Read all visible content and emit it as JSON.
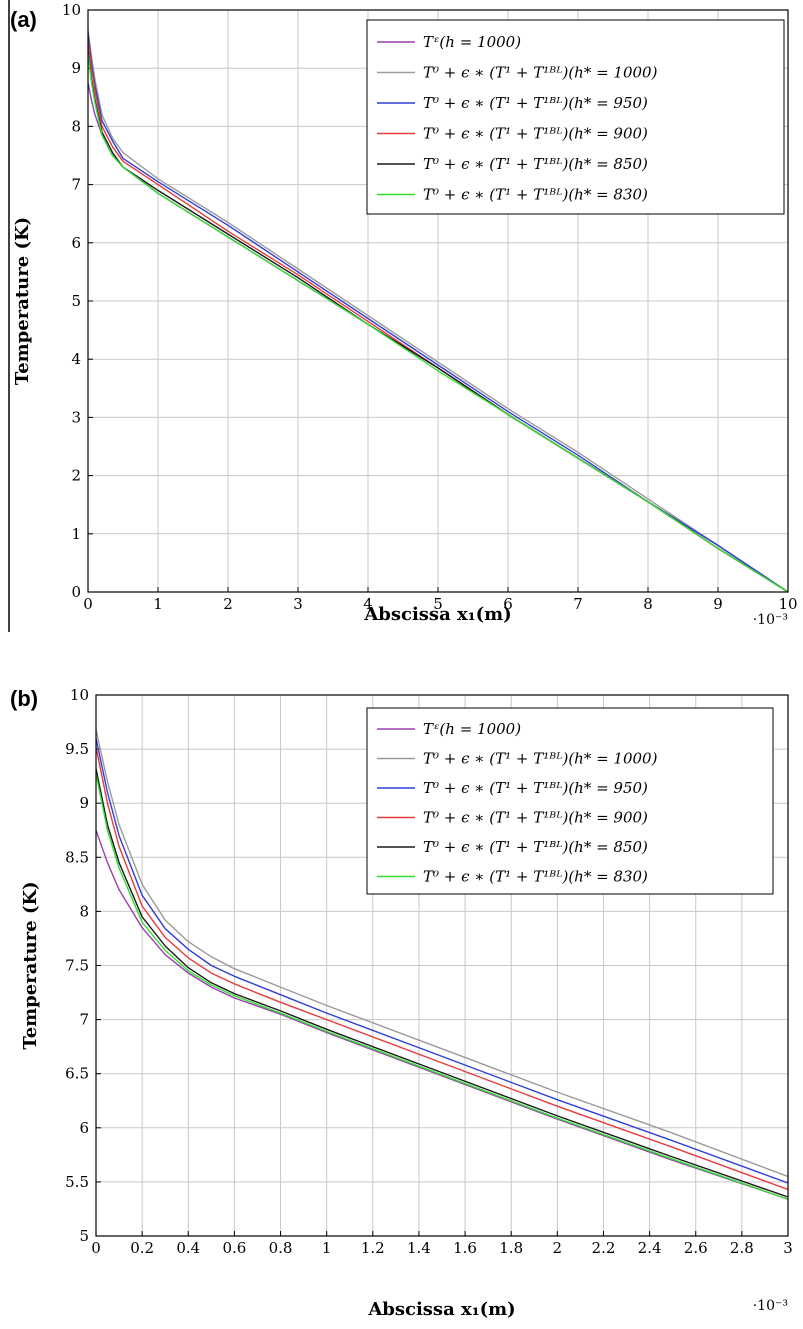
{
  "chart_data": [
    {
      "panel_label": "(a)",
      "type": "line",
      "xlabel": "Abscissa x₁(m)",
      "ylabel": "Temperature (K)",
      "x_multiplier": "·10⁻³",
      "xlim": [
        0,
        10
      ],
      "ylim": [
        0,
        10
      ],
      "xticks": [
        "0",
        "1",
        "2",
        "3",
        "4",
        "5",
        "6",
        "7",
        "8",
        "9",
        "10"
      ],
      "yticks": [
        "0",
        "1",
        "2",
        "3",
        "4",
        "5",
        "6",
        "7",
        "8",
        "9",
        "10"
      ],
      "grid": true,
      "legend_position": "top-right",
      "series": [
        {
          "name": "Tᵋ(h = 1000)",
          "color": "#9b3fb0",
          "x": [
            0,
            0.05,
            0.1,
            0.2,
            0.35,
            0.5,
            1,
            2,
            3,
            4,
            5,
            6,
            7,
            8,
            9,
            10
          ],
          "y": [
            8.75,
            8.45,
            8.2,
            7.85,
            7.5,
            7.3,
            6.85,
            6.1,
            5.35,
            4.6,
            3.85,
            3.05,
            2.3,
            1.55,
            0.8,
            0
          ]
        },
        {
          "name": "T⁰ + ϵ ∗ (T¹ + T¹ᴮᴸ)(h* = 1000)",
          "color": "#9a9a9a",
          "x": [
            0,
            0.05,
            0.1,
            0.2,
            0.35,
            0.5,
            1,
            2,
            3,
            4,
            5,
            6,
            7,
            8,
            9,
            10
          ],
          "y": [
            9.65,
            9.2,
            8.8,
            8.2,
            7.8,
            7.55,
            7.1,
            6.35,
            5.55,
            4.75,
            3.95,
            3.15,
            2.4,
            1.6,
            0.8,
            0
          ]
        },
        {
          "name": "T⁰ + ϵ ∗ (T¹ + T¹ᴮᴸ)(h* = 950)",
          "color": "#2f3fd6",
          "x": [
            0,
            0.05,
            0.1,
            0.2,
            0.35,
            0.5,
            1,
            2,
            3,
            4,
            5,
            6,
            7,
            8,
            9,
            10
          ],
          "y": [
            9.6,
            9.1,
            8.7,
            8.1,
            7.75,
            7.45,
            7.05,
            6.3,
            5.5,
            4.7,
            3.9,
            3.1,
            2.35,
            1.55,
            0.8,
            0
          ]
        },
        {
          "name": "T⁰ + ϵ ∗ (T¹ + T¹ᴮᴸ)(h* = 900)",
          "color": "#e83a3a",
          "x": [
            0,
            0.05,
            0.1,
            0.2,
            0.35,
            0.5,
            1,
            2,
            3,
            4,
            5,
            6,
            7,
            8,
            9,
            10
          ],
          "y": [
            9.5,
            9.0,
            8.6,
            8.0,
            7.65,
            7.4,
            7.0,
            6.2,
            5.45,
            4.65,
            3.85,
            3.05,
            2.3,
            1.55,
            0.75,
            0
          ]
        },
        {
          "name": "T⁰ + ϵ ∗ (T¹ + T¹ᴮᴸ)(h* = 850)",
          "color": "#1a1a1a",
          "x": [
            0,
            0.05,
            0.1,
            0.2,
            0.35,
            0.5,
            1,
            2,
            3,
            4,
            5,
            6,
            7,
            8,
            9,
            10
          ],
          "y": [
            9.3,
            8.8,
            8.45,
            7.9,
            7.55,
            7.3,
            6.9,
            6.15,
            5.4,
            4.6,
            3.85,
            3.05,
            2.3,
            1.55,
            0.75,
            0
          ]
        },
        {
          "name": "T⁰ + ϵ ∗ (T¹ + T¹ᴮᴸ)(h* = 830)",
          "color": "#33dd33",
          "x": [
            0,
            0.05,
            0.1,
            0.2,
            0.35,
            0.5,
            1,
            2,
            3,
            4,
            5,
            6,
            7,
            8,
            9,
            10
          ],
          "y": [
            9.25,
            8.75,
            8.4,
            7.85,
            7.5,
            7.3,
            6.85,
            6.1,
            5.35,
            4.6,
            3.8,
            3.05,
            2.3,
            1.55,
            0.75,
            0
          ]
        }
      ]
    },
    {
      "panel_label": "(b)",
      "type": "line",
      "xlabel": "Abscissa x₁(m)",
      "ylabel": "Temperature (K)",
      "x_multiplier": "·10⁻³",
      "xlim": [
        0,
        3
      ],
      "ylim": [
        5,
        10
      ],
      "xticks": [
        "0",
        "0.2",
        "0.4",
        "0.6",
        "0.8",
        "1",
        "1.2",
        "1.4",
        "1.6",
        "1.8",
        "2",
        "2.2",
        "2.4",
        "2.6",
        "2.8",
        "3"
      ],
      "yticks": [
        "5",
        "5.5",
        "6",
        "6.5",
        "7",
        "7.5",
        "8",
        "8.5",
        "9",
        "9.5",
        "10"
      ],
      "grid": true,
      "legend_position": "top-right",
      "series": [
        {
          "name": "Tᵋ(h = 1000)",
          "color": "#9b3fb0",
          "x": [
            0,
            0.05,
            0.1,
            0.2,
            0.3,
            0.4,
            0.5,
            0.6,
            0.8,
            1,
            1.5,
            2,
            2.5,
            3
          ],
          "y": [
            8.75,
            8.45,
            8.2,
            7.85,
            7.6,
            7.43,
            7.3,
            7.2,
            7.05,
            6.88,
            6.48,
            6.08,
            5.7,
            5.34
          ]
        },
        {
          "name": "T⁰ + ϵ ∗ (T¹ + T¹ᴮᴸ)(h* = 1000)",
          "color": "#9a9a9a",
          "x": [
            0,
            0.05,
            0.1,
            0.2,
            0.3,
            0.4,
            0.5,
            0.6,
            0.8,
            1,
            1.5,
            2,
            2.5,
            3
          ],
          "y": [
            9.68,
            9.2,
            8.8,
            8.25,
            7.92,
            7.72,
            7.58,
            7.47,
            7.3,
            7.13,
            6.73,
            6.33,
            5.95,
            5.55
          ]
        },
        {
          "name": "T⁰ + ϵ ∗ (T¹ + T¹ᴮᴸ)(h* = 950)",
          "color": "#2f3fd6",
          "x": [
            0,
            0.05,
            0.1,
            0.2,
            0.3,
            0.4,
            0.5,
            0.6,
            0.8,
            1,
            1.5,
            2,
            2.5,
            3
          ],
          "y": [
            9.6,
            9.1,
            8.7,
            8.15,
            7.84,
            7.65,
            7.5,
            7.4,
            7.23,
            7.06,
            6.66,
            6.26,
            5.88,
            5.49
          ]
        },
        {
          "name": "T⁰ + ϵ ∗ (T¹ + T¹ᴮᴸ)(h* = 900)",
          "color": "#e83a3a",
          "x": [
            0,
            0.05,
            0.1,
            0.2,
            0.3,
            0.4,
            0.5,
            0.6,
            0.8,
            1,
            1.5,
            2,
            2.5,
            3
          ],
          "y": [
            9.52,
            9.0,
            8.6,
            8.05,
            7.76,
            7.57,
            7.43,
            7.33,
            7.16,
            7.0,
            6.6,
            6.2,
            5.82,
            5.43
          ]
        },
        {
          "name": "T⁰ + ϵ ∗ (T¹ + T¹ᴮᴸ)(h* = 850)",
          "color": "#1a1a1a",
          "x": [
            0,
            0.05,
            0.1,
            0.2,
            0.3,
            0.4,
            0.5,
            0.6,
            0.8,
            1,
            1.5,
            2,
            2.5,
            3
          ],
          "y": [
            9.32,
            8.8,
            8.45,
            7.95,
            7.68,
            7.48,
            7.34,
            7.24,
            7.08,
            6.91,
            6.51,
            6.11,
            5.73,
            5.36
          ]
        },
        {
          "name": "T⁰ + ϵ ∗ (T¹ + T¹ᴮᴸ)(h* = 830)",
          "color": "#33dd33",
          "x": [
            0,
            0.05,
            0.1,
            0.2,
            0.3,
            0.4,
            0.5,
            0.6,
            0.8,
            1,
            1.5,
            2,
            2.5,
            3
          ],
          "y": [
            9.27,
            8.75,
            8.4,
            7.9,
            7.64,
            7.45,
            7.32,
            7.22,
            7.06,
            6.89,
            6.49,
            6.09,
            5.71,
            5.34
          ]
        }
      ]
    }
  ]
}
